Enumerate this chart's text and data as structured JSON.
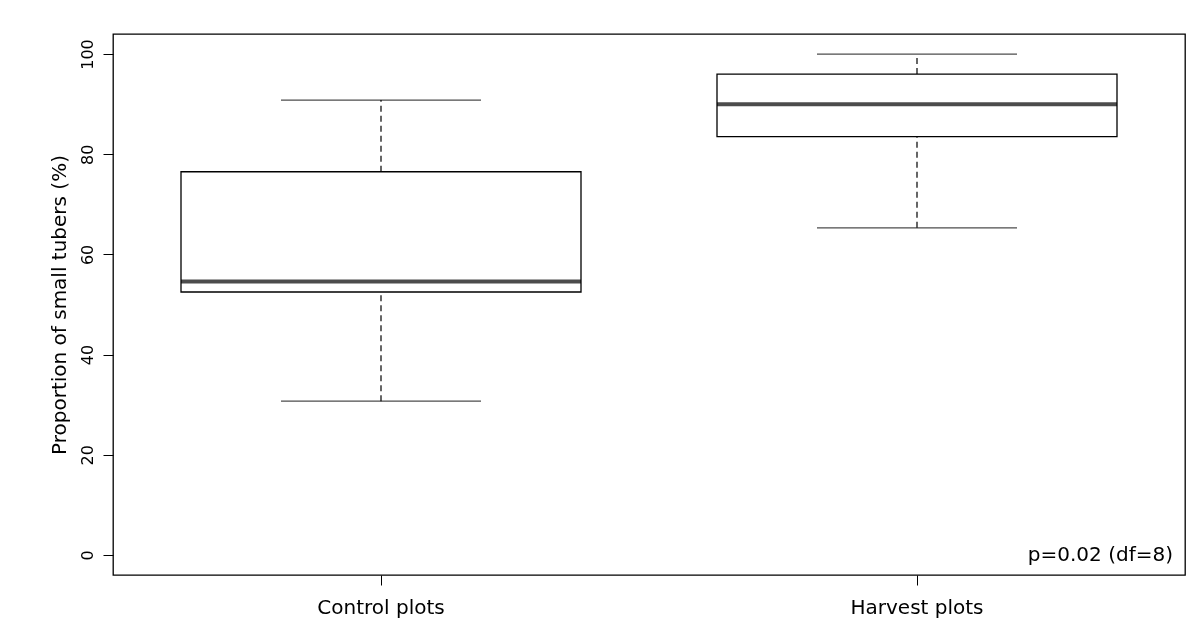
{
  "chart_data": {
    "type": "box",
    "ylabel": "Proportion of small tubers (%)",
    "categories": [
      "Control plots",
      "Harvest plots"
    ],
    "boxes": [
      {
        "low": 30.7,
        "q1": 52.5,
        "median": 54.6,
        "q3": 76.5,
        "high": 90.8
      },
      {
        "low": 65.3,
        "q1": 83.5,
        "median": 90,
        "q3": 96,
        "high": 100
      }
    ],
    "ylim": [
      -4,
      104
    ],
    "yticks": [
      0,
      20,
      40,
      60,
      80,
      100
    ],
    "annotations": [
      "p=0.02 (df=8)"
    ]
  }
}
